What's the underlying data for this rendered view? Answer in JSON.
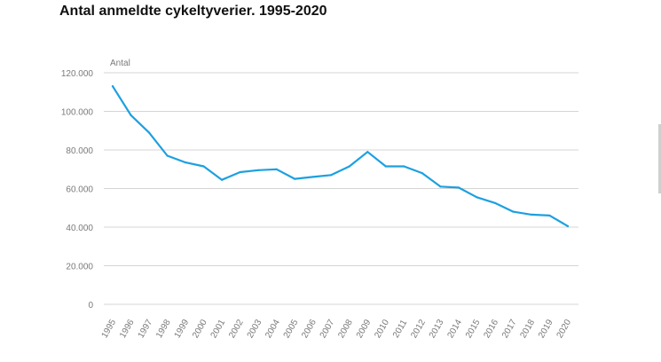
{
  "page": {
    "title": "Antal anmeldte cykeltyverier. 1995-2020"
  },
  "chart_data": {
    "type": "line",
    "title": "Antal anmeldte cykeltyverier. 1995-2020",
    "ylabel": "Antal",
    "xlabel": "",
    "ylim": [
      0,
      120000
    ],
    "yticks": [
      0,
      20000,
      40000,
      60000,
      80000,
      100000,
      120000
    ],
    "ytick_labels": [
      "0",
      "20.000",
      "40.000",
      "60.000",
      "80.000",
      "100.000",
      "120.000"
    ],
    "grid": true,
    "line_color": "#1ca0e0",
    "categories": [
      "1995",
      "1996",
      "1997",
      "1998",
      "1999",
      "2000",
      "2001",
      "2002",
      "2003",
      "2004",
      "2005",
      "2006",
      "2007",
      "2008",
      "2009",
      "2010",
      "2011",
      "2012",
      "2013",
      "2014",
      "2015",
      "2016",
      "2017",
      "2018",
      "2019",
      "2020"
    ],
    "series": [
      {
        "values": [
          113000,
          98000,
          89000,
          77000,
          73500,
          71500,
          64500,
          68500,
          69500,
          70000,
          65000,
          66000,
          67000,
          71500,
          79000,
          71500,
          71500,
          68000,
          61000,
          60500,
          55500,
          52500,
          48000,
          46500,
          46000,
          40500
        ]
      }
    ]
  }
}
